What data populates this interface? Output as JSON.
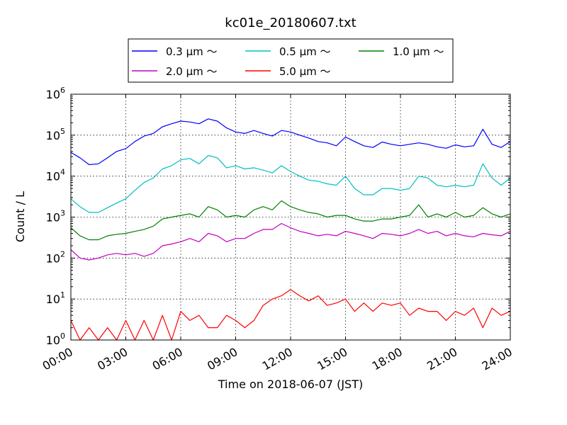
{
  "chart_data": {
    "type": "line",
    "title": "kc01e_20180607.txt",
    "xlabel": "Time on 2018-06-07 (JST)",
    "ylabel": "Count / L",
    "y_scale": "log",
    "ylim": [
      1,
      1000000
    ],
    "xlim": [
      "00:00",
      "24:00"
    ],
    "grid": true,
    "legend_position": "top-center",
    "x_ticks": [
      "00:00",
      "03:00",
      "06:00",
      "09:00",
      "12:00",
      "15:00",
      "18:00",
      "21:00",
      "24:00"
    ],
    "y_ticks": [
      {
        "base": "10",
        "exp": "0"
      },
      {
        "base": "10",
        "exp": "1"
      },
      {
        "base": "10",
        "exp": "2"
      },
      {
        "base": "10",
        "exp": "3"
      },
      {
        "base": "10",
        "exp": "4"
      },
      {
        "base": "10",
        "exp": "5"
      },
      {
        "base": "10",
        "exp": "6"
      }
    ],
    "x": [
      "00:00",
      "00:30",
      "01:00",
      "01:30",
      "02:00",
      "02:30",
      "03:00",
      "03:30",
      "04:00",
      "04:30",
      "05:00",
      "05:30",
      "06:00",
      "06:30",
      "07:00",
      "07:30",
      "08:00",
      "08:30",
      "09:00",
      "09:30",
      "10:00",
      "10:30",
      "11:00",
      "11:30",
      "12:00",
      "12:30",
      "13:00",
      "13:30",
      "14:00",
      "14:30",
      "15:00",
      "15:30",
      "16:00",
      "16:30",
      "17:00",
      "17:30",
      "18:00",
      "18:30",
      "19:00",
      "19:30",
      "20:00",
      "20:30",
      "21:00",
      "21:30",
      "22:00",
      "22:30",
      "23:00",
      "23:30",
      "24:00"
    ],
    "series": [
      {
        "name": "0.3 μm ～",
        "color": "#0000ff",
        "values": [
          38000,
          28000,
          19000,
          20000,
          28000,
          40000,
          47000,
          70000,
          95000,
          110000,
          160000,
          190000,
          220000,
          210000,
          190000,
          250000,
          220000,
          150000,
          120000,
          110000,
          130000,
          110000,
          95000,
          130000,
          120000,
          100000,
          85000,
          70000,
          65000,
          55000,
          90000,
          70000,
          55000,
          50000,
          68000,
          60000,
          55000,
          60000,
          65000,
          60000,
          52000,
          48000,
          58000,
          52000,
          55000,
          140000,
          60000,
          50000,
          70000
        ]
      },
      {
        "name": "0.5 μm ～",
        "color": "#00bfbf",
        "values": [
          2800,
          1800,
          1300,
          1300,
          1700,
          2200,
          2800,
          4500,
          7000,
          9000,
          15000,
          18000,
          25000,
          27000,
          20000,
          32000,
          28000,
          16000,
          18000,
          15000,
          16000,
          14000,
          12000,
          18000,
          13000,
          10000,
          8000,
          7500,
          6500,
          6000,
          10000,
          5000,
          3500,
          3500,
          5000,
          5000,
          4500,
          5000,
          10000,
          9000,
          6000,
          5500,
          6000,
          5500,
          6000,
          20000,
          9000,
          6000,
          9000
        ]
      },
      {
        "name": "1.0 μm ～",
        "color": "#008000",
        "values": [
          550,
          350,
          280,
          280,
          350,
          380,
          400,
          450,
          500,
          600,
          900,
          1000,
          1100,
          1200,
          1000,
          1800,
          1500,
          1000,
          1100,
          1000,
          1500,
          1800,
          1500,
          2500,
          1800,
          1500,
          1300,
          1200,
          1000,
          1100,
          1100,
          900,
          800,
          800,
          900,
          900,
          1000,
          1100,
          2000,
          1000,
          1200,
          1000,
          1300,
          1000,
          1100,
          1700,
          1200,
          1000,
          1200
        ]
      },
      {
        "name": "2.0 μm ～",
        "color": "#bf00bf",
        "values": [
          160,
          100,
          90,
          100,
          120,
          130,
          120,
          130,
          110,
          130,
          200,
          220,
          250,
          300,
          250,
          400,
          350,
          250,
          300,
          300,
          400,
          500,
          500,
          700,
          550,
          450,
          400,
          350,
          380,
          350,
          450,
          400,
          350,
          300,
          400,
          380,
          350,
          400,
          500,
          400,
          450,
          350,
          400,
          350,
          330,
          400,
          370,
          350,
          450
        ]
      },
      {
        "name": "5.0 μm ～",
        "color": "#ff0000",
        "values": [
          3,
          1,
          2,
          1,
          2,
          1,
          3,
          1,
          3,
          1,
          4,
          1,
          5,
          3,
          4,
          2,
          2,
          4,
          3,
          2,
          3,
          7,
          10,
          12,
          17,
          12,
          9,
          12,
          7,
          8,
          10,
          5,
          8,
          5,
          8,
          7,
          8,
          4,
          6,
          5,
          5,
          3,
          5,
          4,
          6,
          2,
          6,
          4,
          5
        ]
      }
    ]
  }
}
